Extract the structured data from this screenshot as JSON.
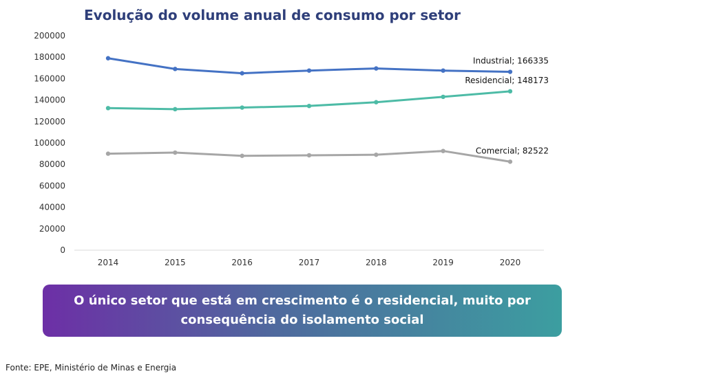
{
  "colors": {
    "industrial": "#4472c4",
    "residencial": "#4dbba6",
    "comercial": "#a6a6a6",
    "title": "#2f3f7a"
  },
  "chart_data": {
    "type": "line",
    "title": "Evolução do volume anual de consumo por setor",
    "xlabel": "",
    "ylabel": "",
    "ylim": [
      0,
      200000
    ],
    "yticks": [
      "0",
      "20000",
      "40000",
      "60000",
      "80000",
      "100000",
      "120000",
      "140000",
      "160000",
      "180000",
      "200000"
    ],
    "categories": [
      "2014",
      "2015",
      "2016",
      "2017",
      "2018",
      "2019",
      "2020"
    ],
    "grid": false,
    "legend": "none",
    "series": [
      {
        "name": "Industrial",
        "values": [
          179000,
          169000,
          165000,
          167500,
          169500,
          167500,
          166335
        ],
        "end_label": "Industrial; 166335",
        "color": "#4472c4"
      },
      {
        "name": "Residencial",
        "values": [
          132500,
          131500,
          133000,
          134500,
          138000,
          143000,
          148173
        ],
        "end_label": "Residencial; 148173",
        "color": "#4dbba6"
      },
      {
        "name": "Comercial",
        "values": [
          90000,
          91000,
          88000,
          88500,
          89000,
          92500,
          82522
        ],
        "end_label": "Comercial; 82522",
        "color": "#a6a6a6"
      }
    ]
  },
  "callout": {
    "text": "O único setor que está em crescimento é o residencial, muito por consequência do isolamento social"
  },
  "source": "Fonte: EPE, Ministério de Minas e Energia"
}
